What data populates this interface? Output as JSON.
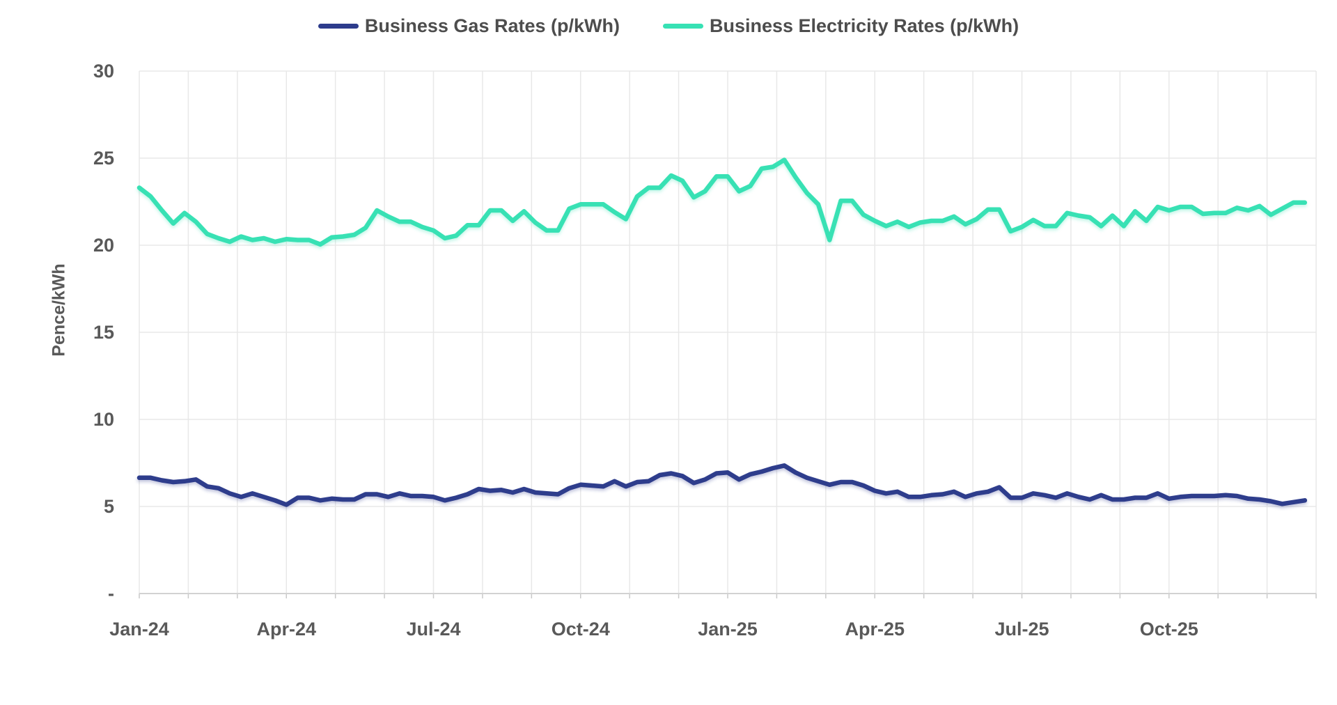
{
  "chart_data": {
    "type": "line",
    "title": "",
    "ylabel": "Pence/kWh",
    "ylim": [
      0,
      30
    ],
    "grid": true,
    "legend_position": "top-center",
    "sampling": "weekly",
    "yticks": [
      {
        "value": 0,
        "label": "-"
      },
      {
        "value": 5,
        "label": "5"
      },
      {
        "value": 10,
        "label": "10"
      },
      {
        "value": 15,
        "label": "15"
      },
      {
        "value": 20,
        "label": "20"
      },
      {
        "value": 25,
        "label": "25"
      },
      {
        "value": 30,
        "label": "30"
      }
    ],
    "x_axis": {
      "months": 24,
      "start_month": "Jan-24",
      "end_month": "Dec-25",
      "tick_every_months": 3,
      "minor_gridline_every_months": 1,
      "tick_labels": [
        "Jan-24",
        "Apr-24",
        "Jul-24",
        "Oct-24",
        "Jan-25",
        "Apr-25",
        "Jul-25",
        "Oct-25"
      ]
    },
    "series": [
      {
        "name": "Business Gas Rates (p/kWh)",
        "color": "#2d3c8c",
        "values": [
          6.65,
          6.65,
          6.5,
          6.4,
          6.45,
          6.55,
          6.15,
          6.05,
          5.75,
          5.55,
          5.75,
          5.55,
          5.35,
          5.1,
          5.5,
          5.5,
          5.35,
          5.45,
          5.4,
          5.4,
          5.7,
          5.7,
          5.55,
          5.75,
          5.6,
          5.6,
          5.55,
          5.35,
          5.5,
          5.7,
          6.0,
          5.9,
          5.95,
          5.8,
          6.0,
          5.8,
          5.75,
          5.7,
          6.05,
          6.25,
          6.2,
          6.15,
          6.45,
          6.15,
          6.4,
          6.45,
          6.8,
          6.9,
          6.75,
          6.35,
          6.55,
          6.9,
          6.95,
          6.55,
          6.85,
          7.0,
          7.2,
          7.35,
          6.95,
          6.65,
          6.45,
          6.25,
          6.4,
          6.4,
          6.2,
          5.9,
          5.75,
          5.85,
          5.55,
          5.55,
          5.65,
          5.7,
          5.85,
          5.55,
          5.75,
          5.85,
          6.1,
          5.5,
          5.5,
          5.75,
          5.65,
          5.5,
          5.75,
          5.55,
          5.4,
          5.65,
          5.4,
          5.4,
          5.5,
          5.5,
          5.75,
          5.45,
          5.55,
          5.6,
          5.6,
          5.6,
          5.65,
          5.6,
          5.45,
          5.4,
          5.3,
          5.15,
          5.25,
          5.35
        ]
      },
      {
        "name": "Business Electricity Rates (p/kWh)",
        "color": "#37e1b4",
        "values": [
          23.3,
          22.8,
          22.0,
          21.25,
          21.85,
          21.35,
          20.65,
          20.4,
          20.2,
          20.5,
          20.3,
          20.4,
          20.2,
          20.35,
          20.3,
          20.3,
          20.05,
          20.45,
          20.5,
          20.6,
          21.0,
          22.0,
          21.65,
          21.35,
          21.35,
          21.05,
          20.85,
          20.4,
          20.55,
          21.15,
          21.15,
          22.0,
          22.0,
          21.4,
          21.95,
          21.3,
          20.85,
          20.85,
          22.1,
          22.35,
          22.35,
          22.35,
          21.9,
          21.5,
          22.8,
          23.3,
          23.3,
          24.0,
          23.7,
          22.75,
          23.1,
          23.95,
          23.95,
          23.1,
          23.4,
          24.4,
          24.5,
          24.9,
          23.9,
          23.0,
          22.35,
          20.3,
          22.55,
          22.55,
          21.75,
          21.4,
          21.1,
          21.35,
          21.05,
          21.3,
          21.4,
          21.4,
          21.65,
          21.2,
          21.5,
          22.05,
          22.05,
          20.8,
          21.05,
          21.45,
          21.1,
          21.1,
          21.85,
          21.7,
          21.6,
          21.1,
          21.7,
          21.1,
          21.95,
          21.4,
          22.2,
          22.0,
          22.2,
          22.2,
          21.8,
          21.85,
          21.85,
          22.15,
          22.0,
          22.25,
          21.75,
          22.1,
          22.45,
          22.45
        ]
      }
    ]
  },
  "colors": {
    "background": "#ffffff",
    "gridline": "#e8e8e8",
    "axis_line": "#d2d2d2",
    "axis_text": "#595959",
    "legend_text": "#4d4d4d",
    "gas_line": "#2d3c8c",
    "electricity_line": "#37e1b4"
  }
}
